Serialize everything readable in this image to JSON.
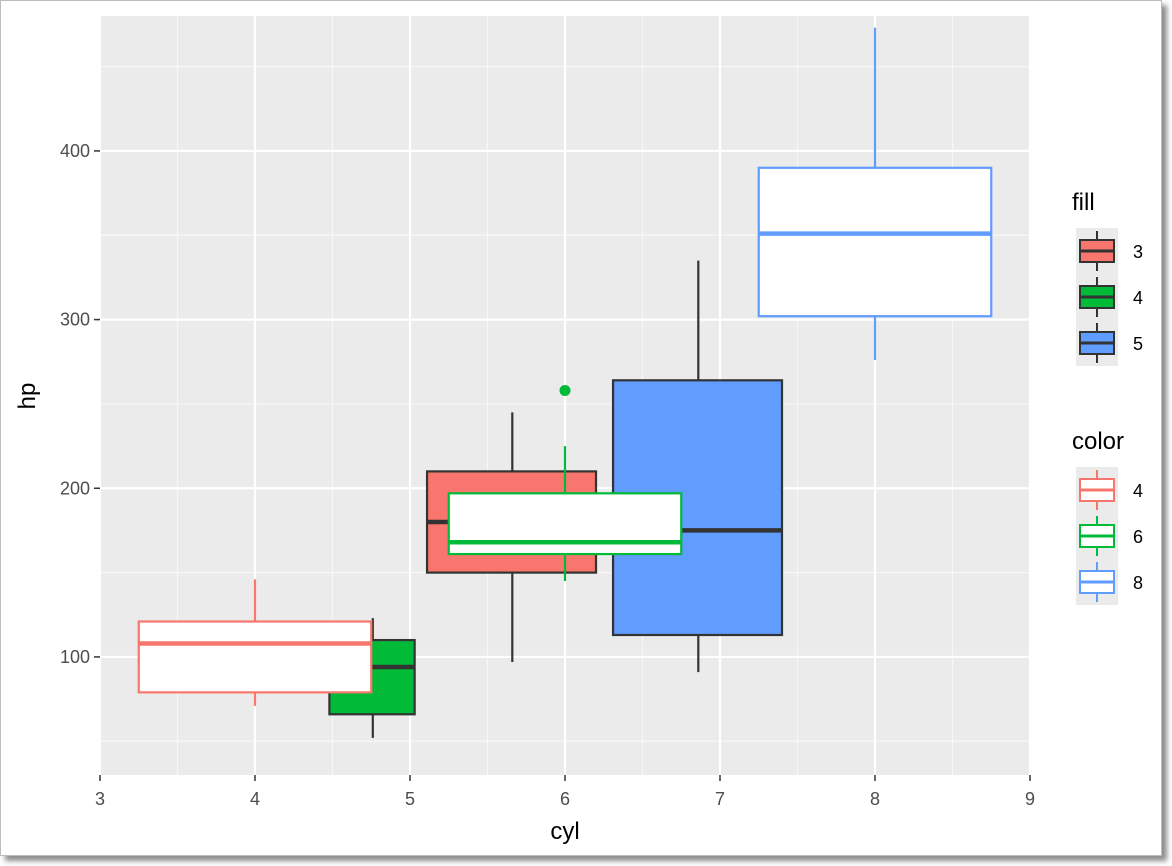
{
  "chart_data": {
    "type": "boxplot",
    "xlabel": "cyl",
    "ylabel": "hp",
    "xlim": [
      3,
      9
    ],
    "ylim": [
      30,
      480
    ],
    "x_ticks": [
      3,
      4,
      5,
      6,
      7,
      8,
      9
    ],
    "y_ticks": [
      100,
      200,
      300,
      400
    ],
    "grid": true,
    "legend_position": "right",
    "fill_legend": {
      "title": "fill",
      "entries": [
        {
          "label": "3",
          "color": "#F8766D"
        },
        {
          "label": "4",
          "color": "#00BA38"
        },
        {
          "label": "5",
          "color": "#619CFF"
        }
      ]
    },
    "color_legend": {
      "title": "color",
      "entries": [
        {
          "label": "4",
          "color": "#F8766D"
        },
        {
          "label": "6",
          "color": "#00BA38"
        },
        {
          "label": "8",
          "color": "#619CFF"
        }
      ]
    },
    "fill_boxes": [
      {
        "group": "3",
        "color": "#F8766D",
        "x_left": 5.11,
        "x_right": 6.2,
        "x_center": 5.66,
        "whisker_low": 97,
        "q1": 150,
        "median": 180,
        "q3": 210,
        "whisker_high": 245,
        "outliers": []
      },
      {
        "group": "4",
        "color": "#00BA38",
        "x_left": 4.48,
        "x_right": 5.03,
        "x_center": 4.76,
        "whisker_low": 52,
        "q1": 66,
        "median": 94,
        "q3": 110,
        "whisker_high": 123,
        "outliers": []
      },
      {
        "group": "5",
        "color": "#619CFF",
        "x_left": 6.31,
        "x_right": 7.4,
        "x_center": 6.86,
        "whisker_low": 91,
        "q1": 113,
        "median": 175,
        "q3": 264,
        "whisker_high": 335,
        "outliers": []
      }
    ],
    "color_boxes": [
      {
        "group": "4",
        "color": "#F8766D",
        "x_left": 3.25,
        "x_right": 4.75,
        "x_center": 4,
        "whisker_low": 71,
        "q1": 79,
        "median": 108,
        "q3": 121,
        "whisker_high": 146,
        "outliers": []
      },
      {
        "group": "6",
        "color": "#00BA38",
        "x_left": 5.25,
        "x_right": 6.75,
        "x_center": 6,
        "whisker_low": 145,
        "q1": 161,
        "median": 168,
        "q3": 197,
        "whisker_high": 225,
        "outliers": [
          258
        ]
      },
      {
        "group": "8",
        "color": "#619CFF",
        "x_left": 7.25,
        "x_right": 8.75,
        "x_center": 8,
        "whisker_low": 276,
        "q1": 302,
        "median": 351,
        "q3": 390,
        "whisker_high": 473,
        "outliers": []
      }
    ]
  }
}
